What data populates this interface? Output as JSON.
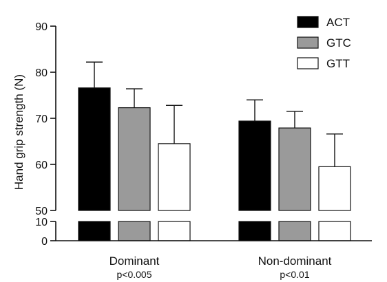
{
  "chart_data": {
    "type": "bar",
    "ylabel": "Hand grip strength  (N)",
    "y_axis_break": [
      10,
      50
    ],
    "ylim": [
      0,
      90
    ],
    "yticks_lower": [
      0,
      10
    ],
    "yticks_upper": [
      50,
      60,
      70,
      80,
      90
    ],
    "categories": [
      "Dominant",
      "Non-dominant"
    ],
    "category_notes": [
      "p<0.005",
      "p<0.01"
    ],
    "legend_position": "top-right",
    "grid": false,
    "error_bars": "upper",
    "series": [
      {
        "name": "ACT",
        "color": "#000000",
        "values": [
          76.6,
          69.4
        ],
        "errors": [
          5.6,
          4.6
        ]
      },
      {
        "name": "GTC",
        "color": "#9a9a9a",
        "values": [
          72.3,
          67.9
        ],
        "errors": [
          4.1,
          3.6
        ]
      },
      {
        "name": "GTT",
        "color": "#ffffff",
        "values": [
          64.5,
          59.5
        ],
        "errors": [
          8.3,
          7.1
        ]
      }
    ]
  }
}
